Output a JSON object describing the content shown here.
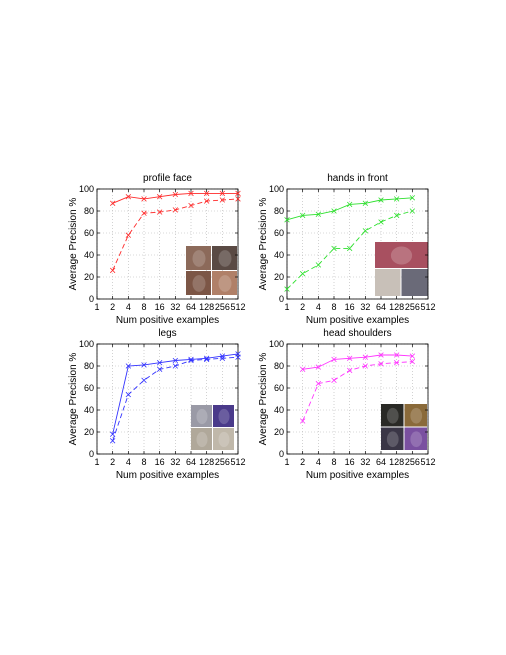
{
  "chart_data": [
    {
      "type": "line",
      "title": "profile face",
      "xlabel": "Num positive examples",
      "ylabel": "Average Precision %",
      "x_scale": "log2",
      "xlim": [
        1,
        512
      ],
      "ylim": [
        0,
        100
      ],
      "x_ticks": [
        "1",
        "2",
        "4",
        "8",
        "16",
        "32",
        "64",
        "128",
        "256",
        "512"
      ],
      "y_ticks": [
        "0",
        "20",
        "40",
        "60",
        "80",
        "100"
      ],
      "grid": true,
      "color": "#ff2a2a",
      "inset_photos": 4,
      "series": [
        {
          "line_style": "solid",
          "x": [
            2,
            4,
            8,
            16,
            32,
            64,
            128,
            256,
            512
          ],
          "values": [
            87,
            93,
            91,
            93,
            95,
            96,
            96,
            96,
            96
          ]
        },
        {
          "line_style": "dashed",
          "x": [
            2,
            4,
            8,
            16,
            32,
            64,
            128,
            256,
            512
          ],
          "values": [
            26,
            58,
            78,
            79,
            81,
            85,
            89,
            90,
            91
          ]
        }
      ]
    },
    {
      "type": "line",
      "title": "hands in front",
      "xlabel": "Num positive examples",
      "ylabel": "Average Precision %",
      "x_scale": "log2",
      "xlim": [
        1,
        512
      ],
      "ylim": [
        0,
        100
      ],
      "x_ticks": [
        "1",
        "2",
        "4",
        "8",
        "16",
        "32",
        "64",
        "128",
        "256",
        "512"
      ],
      "y_ticks": [
        "0",
        "20",
        "40",
        "60",
        "80",
        "100"
      ],
      "grid": true,
      "color": "#2ee02e",
      "inset_photos": 3,
      "series": [
        {
          "line_style": "solid",
          "x": [
            1,
            2,
            4,
            8,
            16,
            32,
            64,
            128,
            256
          ],
          "values": [
            72,
            76,
            77,
            80,
            86,
            87,
            90,
            91,
            92
          ]
        },
        {
          "line_style": "dashed",
          "x": [
            1,
            2,
            4,
            8,
            16,
            32,
            64,
            128,
            256
          ],
          "values": [
            9,
            23,
            31,
            46,
            46,
            62,
            70,
            76,
            80
          ]
        }
      ]
    },
    {
      "type": "line",
      "title": "legs",
      "xlabel": "Num positive examples",
      "ylabel": "Average Precision %",
      "x_scale": "log2",
      "xlim": [
        1,
        512
      ],
      "ylim": [
        0,
        100
      ],
      "x_ticks": [
        "1",
        "2",
        "4",
        "8",
        "16",
        "32",
        "64",
        "128",
        "256",
        "512"
      ],
      "y_ticks": [
        "0",
        "20",
        "40",
        "60",
        "80",
        "100"
      ],
      "grid": true,
      "color": "#3333ff",
      "inset_photos": 4,
      "series": [
        {
          "line_style": "solid",
          "x": [
            2,
            4,
            8,
            16,
            32,
            64,
            128,
            256,
            512
          ],
          "values": [
            18,
            80,
            81,
            83,
            85,
            86,
            87,
            89,
            91
          ]
        },
        {
          "line_style": "dashed",
          "x": [
            2,
            4,
            8,
            16,
            32,
            64,
            128,
            256,
            512
          ],
          "values": [
            12,
            54,
            67,
            77,
            80,
            85,
            86,
            87,
            88
          ]
        }
      ]
    },
    {
      "type": "line",
      "title": "head shoulders",
      "xlabel": "Num positive examples",
      "ylabel": "Average Precision %",
      "x_scale": "log2",
      "xlim": [
        1,
        512
      ],
      "ylim": [
        0,
        100
      ],
      "x_ticks": [
        "1",
        "2",
        "4",
        "8",
        "16",
        "32",
        "64",
        "128",
        "256",
        "512"
      ],
      "y_ticks": [
        "0",
        "20",
        "40",
        "60",
        "80",
        "100"
      ],
      "grid": true,
      "color": "#ff33ff",
      "inset_photos": 4,
      "series": [
        {
          "line_style": "solid",
          "x": [
            2,
            4,
            8,
            16,
            32,
            64,
            128,
            256
          ],
          "values": [
            77,
            79,
            86,
            87,
            88,
            90,
            90,
            89
          ]
        },
        {
          "line_style": "dashed",
          "x": [
            2,
            4,
            8,
            16,
            32,
            64,
            128,
            256
          ],
          "values": [
            30,
            64,
            67,
            76,
            80,
            82,
            83,
            84
          ]
        }
      ]
    }
  ]
}
